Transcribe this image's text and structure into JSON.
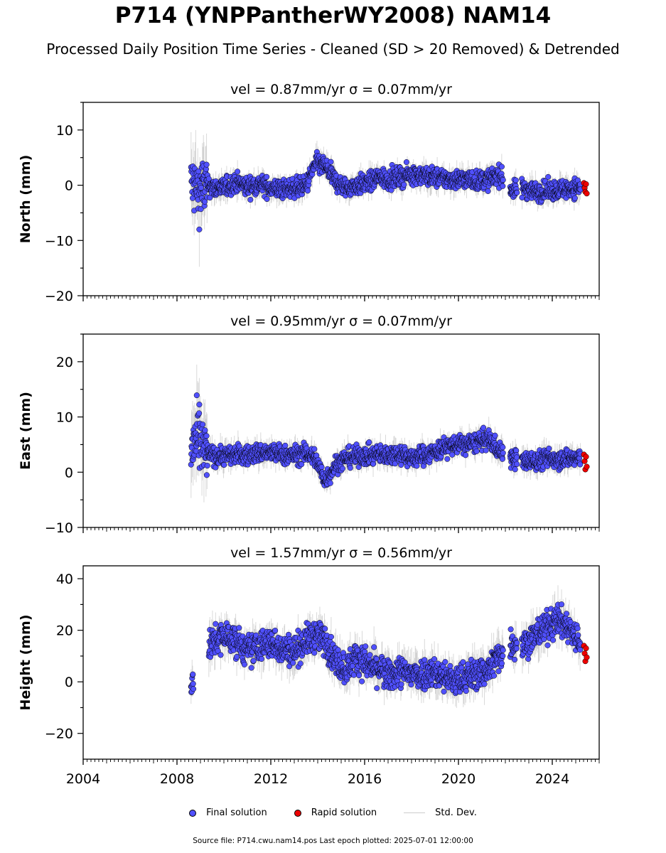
{
  "title": "P714 (YNPPantherWY2008) NAM14",
  "subtitle": "Processed Daily Position Time Series - Cleaned (SD > 20 Removed) & Detrended",
  "legend": {
    "final": "Final solution",
    "rapid": "Rapid solution",
    "std": "Std. Dev."
  },
  "footer": "Source file: P714.cwu.nam14.pos  Last epoch plotted: 2025-07-01 12:00:00",
  "colors": {
    "final": "#5050ff",
    "rapid": "#ee0000",
    "std": "#aaaaaa",
    "outline": "#000000"
  },
  "chart_data": [
    {
      "type": "scatter",
      "name": "north",
      "title": "vel = 0.87mm/yr   σ = 0.07mm/yr",
      "ylabel": "North (mm)",
      "xlim": [
        2004,
        2026
      ],
      "ylim": [
        -20,
        15
      ],
      "yticks": [
        -20,
        -10,
        0,
        10
      ],
      "xticks": [
        2004,
        2008,
        2012,
        2016,
        2020,
        2024
      ],
      "show_xticklabels": false,
      "series": [
        {
          "name": "Final solution",
          "x": [
            2008.6,
            2008.9,
            2009.2,
            2009.6,
            2010.0,
            2010.5,
            2011.0,
            2011.5,
            2012.0,
            2012.5,
            2013.0,
            2013.5,
            2013.9,
            2014.3,
            2014.8,
            2015.2,
            2015.7,
            2016.2,
            2016.6,
            2017.0,
            2017.5,
            2018.0,
            2018.4,
            2018.9,
            2019.4,
            2019.9,
            2020.3,
            2020.8,
            2021.3,
            2021.7,
            2022.3,
            2022.8,
            2023.3,
            2023.8,
            2024.3,
            2024.8,
            2025.2
          ],
          "y": [
            0.5,
            -1.0,
            0.0,
            -0.5,
            -0.5,
            0.5,
            -0.3,
            0.2,
            -0.5,
            -0.8,
            -0.4,
            -0.2,
            4.0,
            3.5,
            0.5,
            -0.5,
            0.0,
            0.5,
            1.5,
            1.0,
            1.5,
            2.0,
            1.8,
            1.5,
            1.2,
            1.0,
            1.2,
            0.8,
            1.0,
            2.0,
            -1.0,
            -0.5,
            -1.2,
            -1.0,
            -0.8,
            -0.5,
            -0.5
          ]
        },
        {
          "name": "Rapid solution",
          "x": [
            2025.35,
            2025.38,
            2025.41,
            2025.44,
            2025.47
          ],
          "y": [
            0.4,
            -0.5,
            -1.2,
            0.2,
            -1.5
          ]
        }
      ]
    },
    {
      "type": "scatter",
      "name": "east",
      "title": "vel = 0.95mm/yr   σ = 0.07mm/yr",
      "ylabel": "East (mm)",
      "xlim": [
        2004,
        2026
      ],
      "ylim": [
        -10,
        25
      ],
      "yticks": [
        -10,
        0,
        10,
        20
      ],
      "xticks": [
        2004,
        2008,
        2012,
        2016,
        2020,
        2024
      ],
      "show_xticklabels": false,
      "series": [
        {
          "name": "Final solution",
          "x": [
            2008.6,
            2008.9,
            2009.2,
            2009.6,
            2010.0,
            2010.5,
            2011.0,
            2011.5,
            2012.0,
            2012.5,
            2013.0,
            2013.5,
            2013.9,
            2014.3,
            2014.8,
            2015.2,
            2015.7,
            2016.2,
            2016.6,
            2017.0,
            2017.5,
            2018.0,
            2018.4,
            2018.9,
            2019.4,
            2019.9,
            2020.3,
            2020.8,
            2021.3,
            2021.7,
            2022.3,
            2022.8,
            2023.3,
            2023.8,
            2024.3,
            2024.8,
            2025.2
          ],
          "y": [
            4.0,
            6.0,
            3.5,
            3.0,
            3.0,
            3.2,
            3.0,
            3.5,
            3.5,
            3.2,
            3.0,
            3.5,
            2.5,
            -1.5,
            1.5,
            2.5,
            3.0,
            3.0,
            3.2,
            3.0,
            3.5,
            2.5,
            3.0,
            3.5,
            4.5,
            5.0,
            5.0,
            5.5,
            6.0,
            4.0,
            2.5,
            2.0,
            2.0,
            2.5,
            2.5,
            2.5,
            2.5
          ]
        },
        {
          "name": "Rapid solution",
          "x": [
            2025.35,
            2025.38,
            2025.41,
            2025.44,
            2025.47
          ],
          "y": [
            3.2,
            2.0,
            0.5,
            2.8,
            1.0
          ]
        }
      ]
    },
    {
      "type": "scatter",
      "name": "height",
      "title": "vel = 1.57mm/yr   σ = 0.56mm/yr",
      "ylabel": "Height (mm)",
      "xlim": [
        2004,
        2026
      ],
      "ylim": [
        -30,
        45
      ],
      "yticks": [
        -20,
        0,
        20,
        40
      ],
      "xticks": [
        2004,
        2008,
        2012,
        2016,
        2020,
        2024
      ],
      "show_xticklabels": true,
      "series": [
        {
          "name": "Final solution",
          "x": [
            2008.6,
            2009.5,
            2010.0,
            2010.5,
            2011.0,
            2011.5,
            2012.0,
            2012.5,
            2013.0,
            2013.5,
            2013.9,
            2014.3,
            2014.8,
            2015.2,
            2015.7,
            2016.2,
            2016.6,
            2017.0,
            2017.5,
            2018.0,
            2018.4,
            2018.9,
            2019.4,
            2019.9,
            2020.3,
            2020.8,
            2021.3,
            2021.7,
            2022.3,
            2022.8,
            2023.3,
            2023.8,
            2024.3,
            2024.8,
            2025.2
          ],
          "y": [
            0.0,
            15.0,
            18.0,
            16.0,
            12.0,
            14.0,
            15.0,
            13.0,
            12.0,
            16.0,
            18.0,
            16.0,
            8.0,
            5.0,
            10.0,
            6.0,
            5.0,
            2.0,
            4.0,
            3.0,
            3.0,
            4.0,
            2.0,
            0.0,
            2.0,
            3.0,
            5.0,
            10.0,
            15.0,
            15.0,
            18.0,
            22.0,
            24.0,
            20.0,
            15.0
          ]
        },
        {
          "name": "Rapid solution",
          "x": [
            2025.35,
            2025.38,
            2025.41,
            2025.44,
            2025.47
          ],
          "y": [
            14.0,
            11.0,
            8.0,
            13.0,
            9.5
          ]
        }
      ]
    }
  ]
}
